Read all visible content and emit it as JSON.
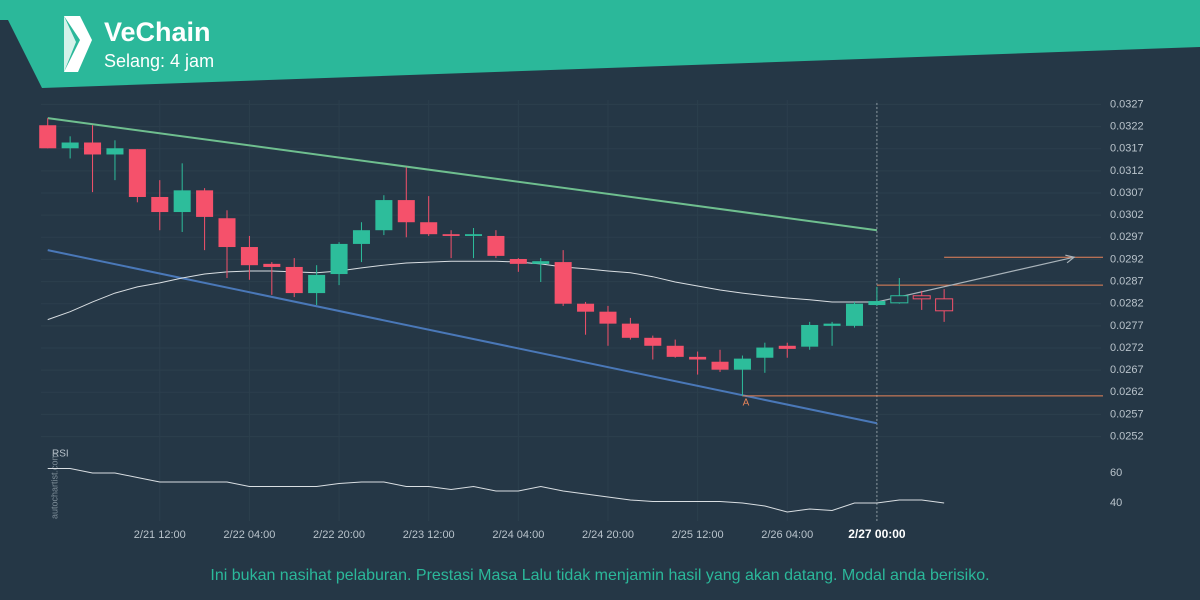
{
  "chart_data": {
    "type": "candlestick",
    "title": "VeChain",
    "subtitle": "Selang: 4 jam",
    "watermark": "autochartist.com",
    "disclaimer": "Ini bukan nasihat pelaburan. Prestasi Masa Lalu tidak menjamin hasil yang akan datang. Modal anda berisiko.",
    "point_label": "A",
    "open": [
      0.03223,
      0.03171,
      0.03184,
      0.03157,
      0.03169,
      0.03061,
      0.03027,
      0.03076,
      0.03013,
      0.02948,
      0.0291,
      0.02903,
      0.02844,
      0.02887,
      0.02955,
      0.02986,
      0.03054,
      0.03004,
      0.02977,
      0.02973,
      0.02973,
      0.02921,
      0.0291,
      0.02914,
      0.0282,
      0.02802,
      0.02775,
      0.02743,
      0.02725,
      0.027,
      0.02689,
      0.02671,
      0.02698,
      0.02725,
      0.02723,
      0.0277,
      0.0277,
      0.02817,
      0.02822,
      0.02838,
      0.02831
    ],
    "high": [
      0.03239,
      0.03198,
      0.03223,
      0.03189,
      0.03169,
      0.03099,
      0.03137,
      0.03081,
      0.03031,
      0.02973,
      0.02914,
      0.02923,
      0.02907,
      0.02959,
      0.03004,
      0.03065,
      0.03128,
      0.03063,
      0.02986,
      0.02991,
      0.02986,
      0.02923,
      0.02923,
      0.02941,
      0.02824,
      0.02815,
      0.02788,
      0.02748,
      0.02739,
      0.02712,
      0.02716,
      0.02703,
      0.02732,
      0.02732,
      0.02779,
      0.02779,
      0.02824,
      0.02858,
      0.02878,
      0.02849,
      0.02853
    ],
    "low": [
      0.03171,
      0.03148,
      0.03072,
      0.03099,
      0.03049,
      0.02986,
      0.02982,
      0.02941,
      0.02878,
      0.02874,
      0.0284,
      0.02835,
      0.02817,
      0.02862,
      0.02914,
      0.02975,
      0.0297,
      0.02973,
      0.02923,
      0.02923,
      0.02923,
      0.02892,
      0.02869,
      0.02815,
      0.0275,
      0.02725,
      0.02739,
      0.02694,
      0.02698,
      0.0266,
      0.02666,
      0.02612,
      0.02664,
      0.02698,
      0.02716,
      0.02725,
      0.02766,
      0.02815,
      0.0282,
      0.02806,
      0.02779
    ],
    "close": [
      0.03171,
      0.03184,
      0.03157,
      0.03171,
      0.03061,
      0.03027,
      0.03076,
      0.03016,
      0.02948,
      0.02907,
      0.02903,
      0.02844,
      0.02885,
      0.02955,
      0.02986,
      0.03054,
      0.03004,
      0.02977,
      0.02973,
      0.02977,
      0.02928,
      0.0291,
      0.02916,
      0.0282,
      0.02802,
      0.02775,
      0.02743,
      0.02725,
      0.027,
      0.02694,
      0.02671,
      0.02696,
      0.02721,
      0.02718,
      0.02772,
      0.02775,
      0.0282,
      0.02826,
      0.02838,
      0.02831,
      0.02804
    ],
    "moving_average": [
      0.02784,
      0.02802,
      0.02824,
      0.02844,
      0.02858,
      0.02867,
      0.02878,
      0.02887,
      0.02892,
      0.02894,
      0.02894,
      0.02892,
      0.0289,
      0.02894,
      0.02901,
      0.02907,
      0.02912,
      0.02914,
      0.02916,
      0.02916,
      0.02916,
      0.02914,
      0.0291,
      0.02903,
      0.02899,
      0.02894,
      0.0289,
      0.02881,
      0.02869,
      0.0286,
      0.02851,
      0.02844,
      0.02838,
      0.02833,
      0.02829,
      0.02824,
      0.02824,
      0.02824,
      null,
      null,
      null
    ],
    "trend_lines": [
      {
        "color": "#6fbf8f",
        "x": [
          0,
          37
        ],
        "y": [
          0.03239,
          0.02986
        ]
      },
      {
        "color": "#4a78b8",
        "x": [
          0,
          37
        ],
        "y": [
          0.02941,
          0.0255
        ]
      }
    ],
    "levels": [
      {
        "value": 0.02925,
        "from": 40
      },
      {
        "value": 0.02862,
        "from": 37
      },
      {
        "value": 0.02612,
        "from": 31
      }
    ],
    "projection": {
      "x": [
        37,
        45.8
      ],
      "y": [
        0.02824,
        0.02925
      ]
    },
    "marker_x": 37,
    "up_color": "#2dbd9b",
    "down_color": "#f5516b",
    "level_color": "#e8845a",
    "xlim": [
      -0.3,
      47
    ],
    "ylim": [
      0.0251,
      0.0328
    ],
    "yticks": [
      0.0327,
      0.0322,
      0.0317,
      0.0312,
      0.0307,
      0.0302,
      0.0297,
      0.0292,
      0.0287,
      0.0282,
      0.0277,
      0.0272,
      0.0267,
      0.0262,
      0.0257,
      0.0252
    ],
    "xticks": [
      {
        "value": 5,
        "label": "2/21 12:00"
      },
      {
        "value": 9,
        "label": "2/22 04:00"
      },
      {
        "value": 13,
        "label": "2/22 20:00"
      },
      {
        "value": 17,
        "label": "2/23 12:00"
      },
      {
        "value": 21,
        "label": "2/24 04:00"
      },
      {
        "value": 25,
        "label": "2/24 20:00"
      },
      {
        "value": 29,
        "label": "2/25 12:00"
      },
      {
        "value": 33,
        "label": "2/26 04:00"
      },
      {
        "value": 37,
        "label": "2/27 00:00"
      }
    ],
    "grid": true,
    "rsi_label": "RSI",
    "rsi": [
      63,
      63,
      60,
      60,
      57,
      54,
      54,
      54,
      54,
      51,
      51,
      51,
      51,
      53,
      54,
      54,
      51,
      51,
      49,
      51,
      48,
      48,
      51,
      48,
      46,
      44,
      42,
      41,
      41,
      41,
      41,
      40,
      38,
      34,
      36,
      35,
      40,
      40,
      42,
      42,
      40
    ],
    "rsi_lim": [
      28,
      68
    ],
    "rsi_ticks": [
      60,
      40
    ]
  }
}
